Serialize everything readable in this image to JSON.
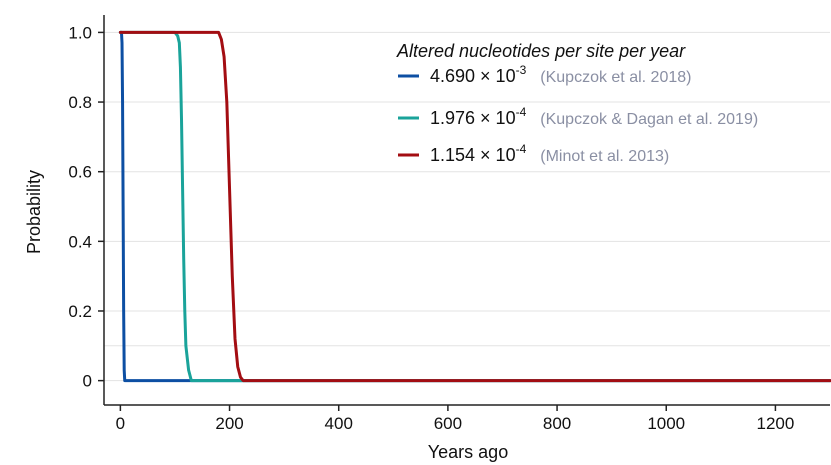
{
  "chart_data": {
    "type": "line",
    "title": "",
    "xlabel": "Years ago",
    "ylabel": "Probability",
    "xlim": [
      -30,
      1300
    ],
    "ylim": [
      -0.07,
      1.05
    ],
    "xticks": [
      0,
      200,
      400,
      600,
      800,
      1000,
      1200
    ],
    "yticks": [
      0,
      0.2,
      0.4,
      0.6,
      0.8,
      1.0
    ],
    "ytick_labels": [
      "0",
      "0.2",
      "0.4",
      "0.6",
      "0.8",
      "1.0"
    ],
    "grid": "horizontal",
    "legend": {
      "title": "Altered nucleotides per site per year",
      "placement": "top-right"
    },
    "series": [
      {
        "name_mantissa": "4.690 × 10",
        "name_exponent": "-3",
        "reference": "(Kupczok et al. 2018)",
        "color": "#0d4fa3",
        "x": [
          0,
          2,
          3,
          4,
          5,
          6,
          7,
          8,
          10,
          20,
          1300
        ],
        "y": [
          1.0,
          1.0,
          0.97,
          0.8,
          0.5,
          0.2,
          0.03,
          0.0,
          0.0,
          0.0,
          0.0
        ]
      },
      {
        "name_mantissa": "1.976 × 10",
        "name_exponent": "-4",
        "reference": "(Kupczok & Dagan et al. 2019)",
        "color": "#1aa39a",
        "x": [
          0,
          100,
          105,
          108,
          110,
          112,
          114,
          116,
          118,
          120,
          125,
          130,
          140,
          1300
        ],
        "y": [
          1.0,
          1.0,
          0.99,
          0.97,
          0.9,
          0.75,
          0.55,
          0.35,
          0.2,
          0.1,
          0.03,
          0.0,
          0.0,
          0.0
        ]
      },
      {
        "name_mantissa": "1.154 × 10",
        "name_exponent": "-4",
        "reference": "(Minot et al. 2013)",
        "color": "#a30d12",
        "x": [
          0,
          180,
          185,
          190,
          195,
          200,
          205,
          210,
          215,
          220,
          225,
          240,
          1300
        ],
        "y": [
          1.0,
          1.0,
          0.98,
          0.93,
          0.8,
          0.55,
          0.3,
          0.12,
          0.04,
          0.01,
          0.0,
          0.0,
          0.0
        ]
      }
    ]
  }
}
